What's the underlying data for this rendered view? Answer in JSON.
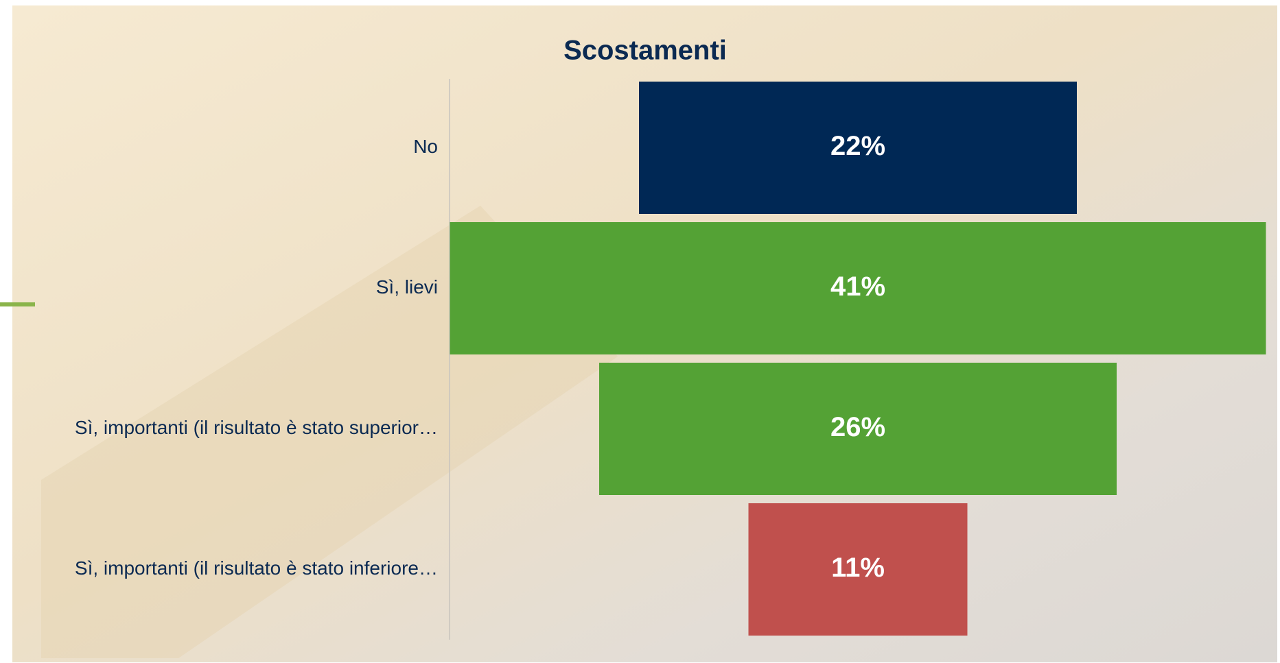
{
  "chart_data": {
    "type": "funnel",
    "title": "Scostamenti",
    "categories": [
      "No",
      "Sì, lievi",
      "Sì, importanti (il risultato è stato superior…",
      "Sì, importanti (il risultato è stato inferiore…"
    ],
    "values": [
      22,
      41,
      26,
      11
    ],
    "value_labels": [
      "22%",
      "41%",
      "26%",
      "11%"
    ],
    "colors": [
      "#002855",
      "#54a235",
      "#54a235",
      "#c0504d"
    ]
  }
}
